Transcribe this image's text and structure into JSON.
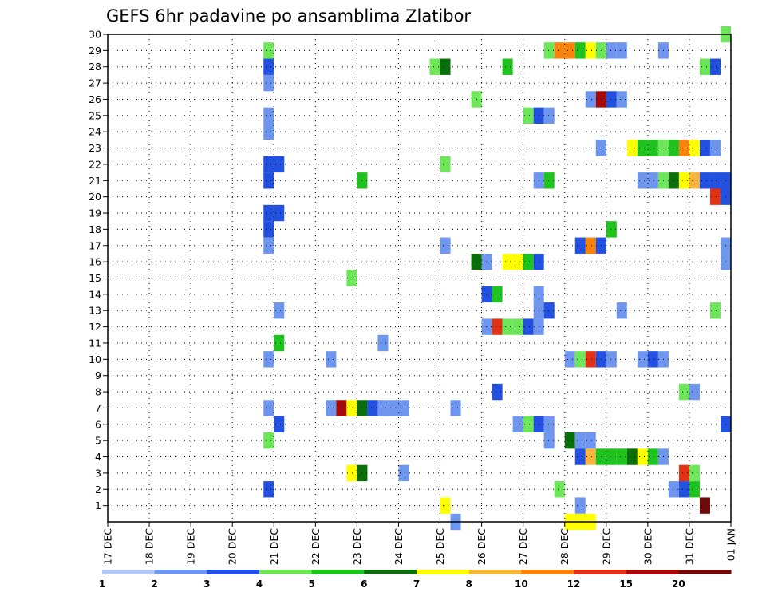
{
  "chart_data": {
    "type": "heatmap",
    "title": "GEFS 6hr padavine po ansamblima Zlatibor",
    "xlabel": "",
    "ylabel": "",
    "x_tick_labels": [
      "17 DEC",
      "18 DEC",
      "19 DEC",
      "20 DEC",
      "21 DEC",
      "22 DEC",
      "23 DEC",
      "24 DEC",
      "25 DEC",
      "26 DEC",
      "27 DEC",
      "28 DEC",
      "29 DEC",
      "30 DEC",
      "31 DEC",
      "01 JAN"
    ],
    "y_tick_labels": [
      "1",
      "2",
      "3",
      "4",
      "5",
      "6",
      "7",
      "8",
      "9",
      "10",
      "11",
      "12",
      "13",
      "14",
      "15",
      "16",
      "17",
      "18",
      "19",
      "20",
      "21",
      "22",
      "23",
      "24",
      "25",
      "26",
      "27",
      "28",
      "29",
      "30"
    ],
    "x_unit": "6-hour steps after 17 DEC 00Z",
    "xlim": [
      0,
      60
    ],
    "ylim": [
      0,
      30
    ],
    "grid": "dotted",
    "colorbar": {
      "labels": [
        "1",
        "2",
        "3",
        "4",
        "5",
        "6",
        "7",
        "8",
        "10",
        "12",
        "15",
        "20"
      ],
      "colors": [
        "#b4c8f8",
        "#6e96ee",
        "#2250e0",
        "#6ee65a",
        "#1ec31e",
        "#0a6e0a",
        "#ffff00",
        "#f8b43c",
        "#f7820c",
        "#e13214",
        "#a50a0a",
        "#6e0a0a"
      ]
    },
    "cells": [
      [
        15.5,
        29,
        3
      ],
      [
        15.5,
        28,
        2
      ],
      [
        15.5,
        27,
        1
      ],
      [
        15.5,
        25,
        1
      ],
      [
        15.5,
        24,
        1
      ],
      [
        15.5,
        22,
        2
      ],
      [
        15.5,
        21,
        2
      ],
      [
        15.5,
        19,
        2
      ],
      [
        15.5,
        18,
        2
      ],
      [
        15.5,
        17,
        1
      ],
      [
        15.5,
        10,
        1
      ],
      [
        15.5,
        7,
        1
      ],
      [
        15.5,
        5,
        3
      ],
      [
        15.5,
        2,
        2
      ],
      [
        16.5,
        22,
        2
      ],
      [
        16.5,
        19,
        2
      ],
      [
        16.5,
        13,
        1
      ],
      [
        16.5,
        11,
        4
      ],
      [
        16.5,
        6,
        2
      ],
      [
        21.5,
        10,
        1
      ],
      [
        21.5,
        7,
        1
      ],
      [
        22.5,
        7,
        10
      ],
      [
        23.5,
        15,
        3
      ],
      [
        23.5,
        7,
        6
      ],
      [
        23.5,
        3,
        6
      ],
      [
        24.5,
        21,
        4
      ],
      [
        24.5,
        7,
        5
      ],
      [
        24.5,
        3,
        5
      ],
      [
        25.5,
        7,
        2
      ],
      [
        26.5,
        11,
        1
      ],
      [
        26.5,
        7,
        1
      ],
      [
        27.5,
        7,
        1
      ],
      [
        28.5,
        7,
        1
      ],
      [
        28.5,
        3,
        1
      ],
      [
        31.5,
        28,
        3
      ],
      [
        32.5,
        28,
        5
      ],
      [
        32.5,
        22,
        3
      ],
      [
        32.5,
        17,
        1
      ],
      [
        32.5,
        1,
        6
      ],
      [
        33.5,
        7,
        1
      ],
      [
        33.5,
        0,
        1
      ],
      [
        35.5,
        26,
        3
      ],
      [
        35.5,
        16,
        5
      ],
      [
        36.5,
        16,
        1
      ],
      [
        36.5,
        14,
        2
      ],
      [
        36.5,
        12,
        1
      ],
      [
        37.5,
        14,
        4
      ],
      [
        37.5,
        12,
        9
      ],
      [
        37.5,
        8,
        2
      ],
      [
        38.5,
        28,
        4
      ],
      [
        38.5,
        16,
        6
      ],
      [
        38.5,
        12,
        3
      ],
      [
        39.5,
        16,
        6
      ],
      [
        39.5,
        12,
        3
      ],
      [
        39.5,
        6,
        1
      ],
      [
        40.5,
        25,
        3
      ],
      [
        40.5,
        16,
        4
      ],
      [
        40.5,
        12,
        2
      ],
      [
        40.5,
        6,
        3
      ],
      [
        41.5,
        25,
        2
      ],
      [
        41.5,
        21,
        1
      ],
      [
        41.5,
        16,
        2
      ],
      [
        41.5,
        14,
        1
      ],
      [
        41.5,
        13,
        1
      ],
      [
        41.5,
        12,
        1
      ],
      [
        41.5,
        6,
        2
      ],
      [
        42.5,
        29,
        3
      ],
      [
        42.5,
        25,
        1
      ],
      [
        42.5,
        21,
        4
      ],
      [
        42.5,
        13,
        2
      ],
      [
        42.5,
        6,
        1
      ],
      [
        42.5,
        5,
        1
      ],
      [
        43.5,
        29,
        8
      ],
      [
        43.5,
        2,
        3
      ],
      [
        44.5,
        29,
        8
      ],
      [
        44.5,
        10,
        1
      ],
      [
        44.5,
        5,
        5
      ],
      [
        44.5,
        0,
        6
      ],
      [
        45.5,
        29,
        4
      ],
      [
        45.5,
        17,
        2
      ],
      [
        45.5,
        10,
        3
      ],
      [
        45.5,
        5,
        1
      ],
      [
        45.5,
        4,
        2
      ],
      [
        45.5,
        1,
        1
      ],
      [
        45.5,
        0,
        6
      ],
      [
        46.5,
        29,
        6
      ],
      [
        46.5,
        26,
        1
      ],
      [
        46.5,
        17,
        8
      ],
      [
        46.5,
        10,
        9
      ],
      [
        46.5,
        5,
        1
      ],
      [
        46.5,
        4,
        7
      ],
      [
        46.5,
        0,
        6
      ],
      [
        47.5,
        29,
        3
      ],
      [
        47.5,
        26,
        10
      ],
      [
        47.5,
        23,
        1
      ],
      [
        47.5,
        17,
        2
      ],
      [
        47.5,
        10,
        2
      ],
      [
        47.5,
        4,
        4
      ],
      [
        48.5,
        29,
        1
      ],
      [
        48.5,
        26,
        2
      ],
      [
        48.5,
        18,
        4
      ],
      [
        48.5,
        10,
        1
      ],
      [
        48.5,
        4,
        4
      ],
      [
        49.5,
        29,
        1
      ],
      [
        49.5,
        26,
        1
      ],
      [
        49.5,
        13,
        1
      ],
      [
        49.5,
        4,
        4
      ],
      [
        50.5,
        23,
        6
      ],
      [
        50.5,
        4,
        5
      ],
      [
        51.5,
        23,
        4
      ],
      [
        51.5,
        21,
        1
      ],
      [
        51.5,
        10,
        1
      ],
      [
        51.5,
        4,
        6
      ],
      [
        52.5,
        23,
        4
      ],
      [
        52.5,
        21,
        1
      ],
      [
        52.5,
        10,
        2
      ],
      [
        52.5,
        4,
        4
      ],
      [
        53.5,
        29,
        1
      ],
      [
        53.5,
        23,
        3
      ],
      [
        53.5,
        21,
        3
      ],
      [
        53.5,
        10,
        1
      ],
      [
        53.5,
        4,
        1
      ],
      [
        54.5,
        23,
        4
      ],
      [
        54.5,
        21,
        5
      ],
      [
        54.5,
        2,
        1
      ],
      [
        55.5,
        23,
        8
      ],
      [
        55.5,
        21,
        6
      ],
      [
        55.5,
        8,
        3
      ],
      [
        55.5,
        3,
        9
      ],
      [
        55.5,
        2,
        2
      ],
      [
        56.5,
        23,
        6
      ],
      [
        56.5,
        21,
        7
      ],
      [
        56.5,
        8,
        1
      ],
      [
        56.5,
        3,
        3
      ],
      [
        56.5,
        2,
        4
      ],
      [
        57.5,
        28,
        3
      ],
      [
        57.5,
        23,
        2
      ],
      [
        57.5,
        21,
        2
      ],
      [
        57.5,
        1,
        11
      ],
      [
        58.5,
        28,
        2
      ],
      [
        58.5,
        23,
        1
      ],
      [
        58.5,
        21,
        2
      ],
      [
        58.5,
        20,
        9
      ],
      [
        58.5,
        13,
        3
      ],
      [
        59.5,
        30,
        3
      ],
      [
        59.5,
        21,
        2
      ],
      [
        59.5,
        20,
        2
      ],
      [
        59.5,
        17,
        1
      ],
      [
        59.5,
        16,
        1
      ],
      [
        59.5,
        6,
        2
      ]
    ]
  }
}
